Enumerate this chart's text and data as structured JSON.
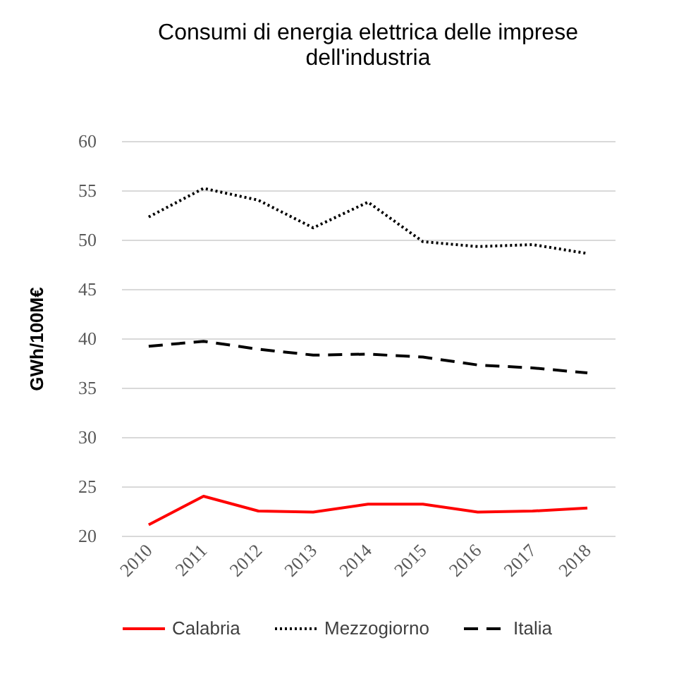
{
  "chart_data": {
    "type": "line",
    "title": "Consumi di energia elettrica delle imprese\ndell'industria",
    "ylabel": "GWh/100M€",
    "categories": [
      "2010",
      "2011",
      "2012",
      "2013",
      "2014",
      "2015",
      "2016",
      "2017",
      "2018"
    ],
    "series": [
      {
        "name": "Calabria",
        "color": "#ff0000",
        "line_style": "solid",
        "values": [
          21.1,
          24.0,
          22.5,
          22.4,
          23.2,
          23.2,
          22.4,
          22.5,
          22.8
        ]
      },
      {
        "name": "Mezzogiorno",
        "color": "#000000",
        "line_style": "dotted",
        "values": [
          52.3,
          55.2,
          54.0,
          51.2,
          53.8,
          49.8,
          49.3,
          49.5,
          48.6
        ]
      },
      {
        "name": "Italia",
        "color": "#000000",
        "line_style": "dashed",
        "values": [
          39.2,
          39.7,
          38.9,
          38.3,
          38.4,
          38.1,
          37.3,
          37.0,
          36.5
        ]
      }
    ],
    "ylim": [
      20,
      60
    ],
    "yticks": [
      20,
      25,
      30,
      35,
      40,
      45,
      50,
      55,
      60
    ],
    "grid": "y",
    "legend": "bottom",
    "marker": "none"
  }
}
